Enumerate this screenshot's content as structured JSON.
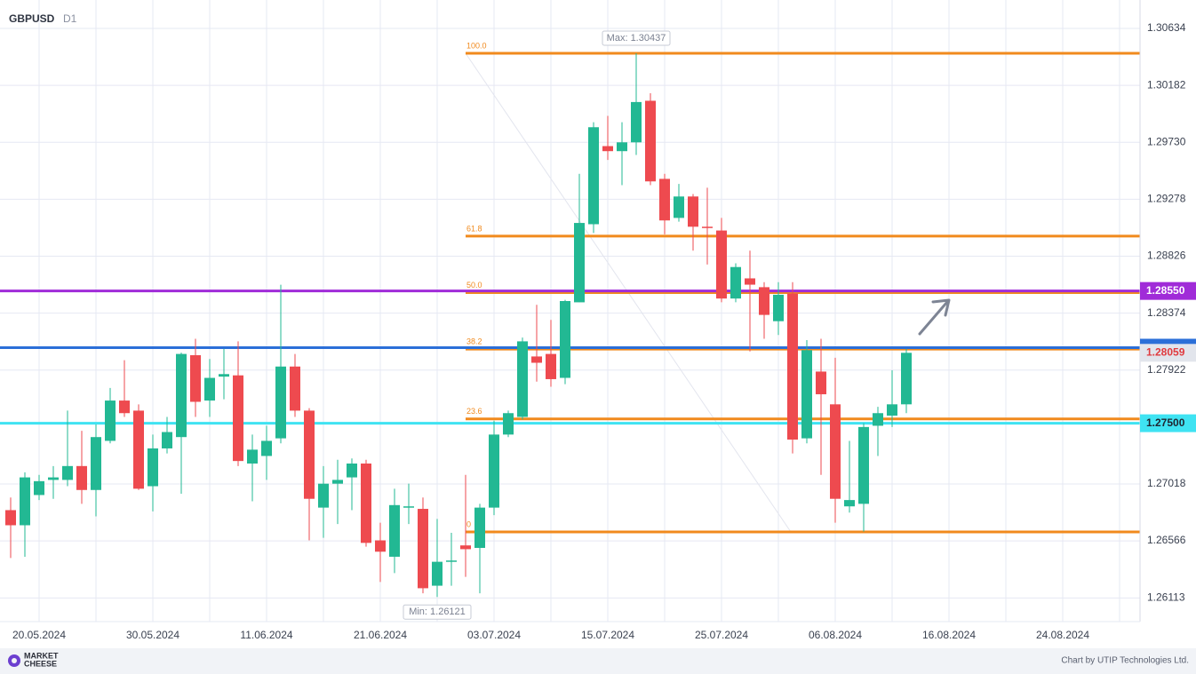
{
  "chart_data": {
    "type": "candlestick",
    "title": "GBPUSD",
    "subtitle": "D1",
    "categories": [
      null,
      null,
      "20.05.2024",
      null,
      null,
      null,
      null,
      null,
      null,
      null,
      "30.05.2024",
      null,
      null,
      null,
      null,
      null,
      null,
      null,
      "11.06.2024",
      null,
      null,
      null,
      null,
      null,
      null,
      null,
      "21.06.2024",
      null,
      null,
      null,
      null,
      null,
      null,
      null,
      "03.07.2024",
      null,
      null,
      null,
      null,
      null,
      null,
      null,
      "15.07.2024",
      null,
      null,
      null,
      null,
      null,
      null,
      null,
      "25.07.2024",
      null,
      null,
      null,
      null,
      null,
      null,
      null,
      "06.08.2024",
      null,
      null,
      null,
      null,
      null,
      null,
      null,
      "16.08.2024",
      null,
      null,
      null,
      null,
      null,
      null,
      null,
      "24.08.2024",
      null,
      null,
      null,
      null
    ],
    "open": [
      1.2681,
      1.2669,
      1.2693,
      1.2705,
      1.2705,
      1.2716,
      1.2697,
      1.2736,
      1.2768,
      1.276,
      1.27,
      1.273,
      1.2739,
      1.2804,
      1.2768,
      1.2787,
      1.2788,
      1.2718,
      1.2724,
      1.2738,
      1.2795,
      1.276,
      1.2683,
      1.2702,
      1.2707,
      1.2718,
      1.2657,
      1.2644,
      1.2683,
      1.2682,
      1.2621,
      1.264,
      1.2653,
      1.2651,
      1.2683,
      1.2741,
      1.2755,
      1.2803,
      1.2805,
      1.2786,
      1.2846,
      1.2908,
      1.297,
      1.2966,
      1.2973,
      1.3006,
      1.2944,
      1.2913,
      1.293,
      1.2906,
      1.2903,
      1.2849,
      1.2865,
      1.2858,
      1.2831,
      1.2853,
      1.2738,
      1.2791,
      1.2765,
      1.2684,
      1.2686,
      1.2748,
      1.2756,
      1.2765,
      null,
      null,
      null,
      null,
      null,
      null,
      null,
      null,
      null,
      null,
      null,
      null,
      null,
      null,
      null
    ],
    "high": [
      1.2691,
      1.2711,
      1.2709,
      1.2716,
      1.276,
      1.2744,
      1.2749,
      1.2778,
      1.28,
      1.2765,
      1.2741,
      1.2755,
      1.2806,
      1.2817,
      1.2801,
      1.2809,
      1.2815,
      1.2741,
      1.2748,
      1.286,
      1.2805,
      1.2762,
      1.2716,
      1.2721,
      1.2722,
      1.2721,
      1.2671,
      1.2698,
      1.2702,
      1.2691,
      1.2674,
      1.2663,
      1.2709,
      1.2686,
      1.2752,
      1.276,
      1.2818,
      1.2844,
      1.2832,
      1.2848,
      1.2948,
      1.2989,
      1.2994,
      1.2989,
      1.30437,
      1.3012,
      1.2948,
      1.294,
      1.2932,
      1.2937,
      1.2913,
      1.2877,
      1.2887,
      1.2862,
      1.2862,
      1.2862,
      1.2816,
      1.2817,
      1.2802,
      1.2736,
      1.275,
      1.2763,
      1.2792,
      1.2809,
      null,
      null,
      null,
      null,
      null,
      null,
      null,
      null,
      null,
      null,
      null,
      null,
      null,
      null,
      null
    ],
    "low": [
      1.2643,
      1.2644,
      1.2689,
      1.269,
      1.27,
      1.2686,
      1.2676,
      1.2734,
      1.2755,
      1.2697,
      1.268,
      1.2726,
      1.2694,
      1.2755,
      1.2755,
      1.2769,
      1.2716,
      1.2688,
      1.2705,
      1.2734,
      1.2755,
      1.2657,
      1.2659,
      1.267,
      1.2681,
      1.2652,
      1.2624,
      1.2631,
      1.267,
      1.2615,
      1.26121,
      1.2621,
      1.2628,
      1.2615,
      1.2677,
      1.2739,
      1.2753,
      1.2783,
      1.2779,
      1.2781,
      1.2846,
      1.2901,
      1.2959,
      1.2939,
      1.2963,
      1.2939,
      1.29,
      1.291,
      1.2887,
      1.2876,
      1.2846,
      1.2846,
      1.2807,
      1.2817,
      1.282,
      1.2726,
      1.2734,
      1.2709,
      1.2671,
      1.2679,
      1.2664,
      1.2724,
      1.2747,
      1.2758,
      null,
      null,
      null,
      null,
      null,
      null,
      null,
      null,
      null,
      null,
      null,
      null,
      null,
      null,
      null
    ],
    "close": [
      1.2669,
      1.2707,
      1.2704,
      1.2707,
      1.2716,
      1.2697,
      1.2739,
      1.2768,
      1.2758,
      1.2698,
      1.273,
      1.2743,
      1.2805,
      1.2767,
      1.2786,
      1.2789,
      1.272,
      1.2729,
      1.2736,
      1.2795,
      1.276,
      1.269,
      1.2702,
      1.2705,
      1.2718,
      1.2655,
      1.2648,
      1.2685,
      1.2684,
      1.2619,
      1.264,
      1.2641,
      1.265,
      1.2683,
      1.2741,
      1.2758,
      1.2815,
      1.2798,
      1.2785,
      1.2847,
      1.2909,
      1.2985,
      1.2966,
      1.2973,
      1.3005,
      1.2942,
      1.2911,
      1.293,
      1.2906,
      1.2905,
      1.2849,
      1.2874,
      1.286,
      1.2836,
      1.2852,
      1.2737,
      1.2808,
      1.2773,
      1.269,
      1.2689,
      1.2747,
      1.2758,
      1.2765,
      1.28059,
      null,
      null,
      null,
      null,
      null,
      null,
      null,
      null,
      null,
      null,
      null,
      null,
      null,
      null,
      null
    ],
    "up_color": "#22b893",
    "down_color": "#ee4a4f",
    "ylim": [
      1.25925,
      1.3086
    ],
    "yticks": [
      1.30634,
      1.30182,
      {
        "value": 1.2973,
        "label": "1.29730"
      },
      1.29278,
      1.28826,
      1.28374,
      1.27922,
      1.27018,
      1.26566,
      1.26113
    ],
    "grid": true,
    "levels": [
      {
        "value": 1.2855,
        "label": "1.28550",
        "color": "#a02bd8"
      },
      {
        "value": 1.281,
        "color": "#2b6fd8"
      },
      {
        "value": 1.275,
        "label": "1.27500",
        "color": "#3fe3f2"
      }
    ],
    "fibonacci": {
      "high": 1.30437,
      "low": 1.26637,
      "color": "#f18a1d",
      "levels": [
        {
          "value": 100,
          "label": "100.0"
        },
        61.8,
        {
          "value": 50,
          "label": "50.0"
        },
        38.2,
        23.6,
        0
      ]
    },
    "annotations": {
      "max": "Max: 1.30437",
      "min": "Min: 1.26121"
    }
  },
  "footer": {
    "logo_top": "MARKET",
    "logo_bottom": "CHEESE",
    "credit": "Chart by UTIP Technologies Ltd."
  }
}
